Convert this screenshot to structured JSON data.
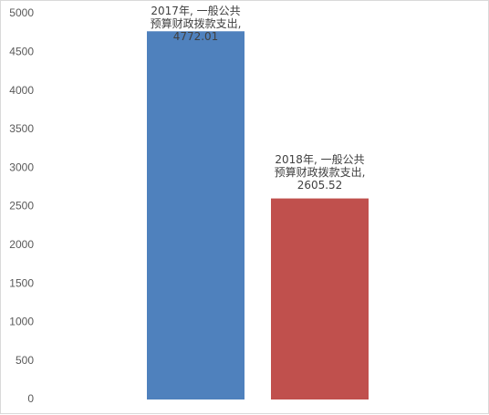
{
  "chart_data": {
    "type": "bar",
    "values": [
      4772.01,
      2605.52
    ],
    "value_labels": [
      "2017年, 一般公共预算财政拨款支出, 4772.01",
      "2018年, 一般公共预算财政拨款支出, 2605.52"
    ],
    "colors": [
      "#4f81bd",
      "#c0504d"
    ],
    "ylim": [
      0,
      5000
    ],
    "yticks": [
      0,
      500,
      1000,
      1500,
      2000,
      2500,
      3000,
      3500,
      4000,
      4500,
      5000
    ],
    "grid": false
  }
}
